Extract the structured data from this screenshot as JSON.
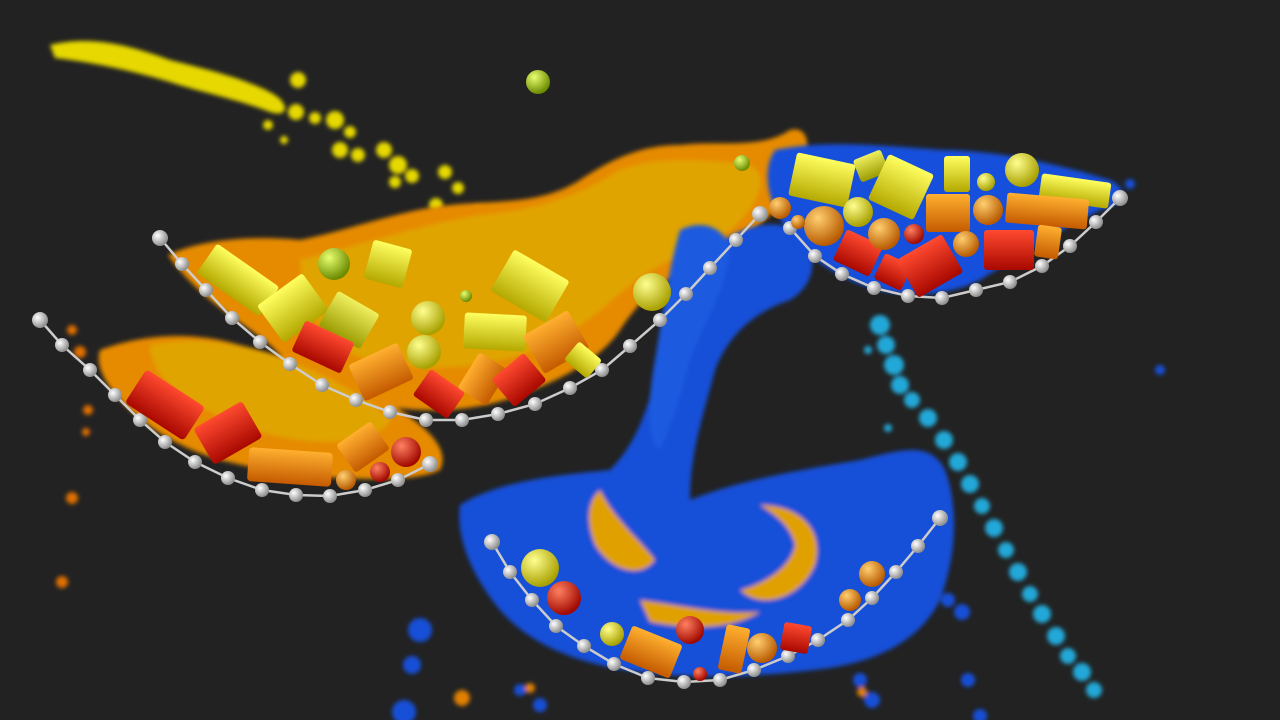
{
  "scene": {
    "background": "#222222",
    "palette": {
      "yellow": "#e8e800",
      "gold": "#f5b400",
      "orange": "#f08000",
      "red": "#e01010",
      "blue": "#1450dc",
      "cyan": "#20a8d8",
      "chain": "#d8d8d8"
    }
  }
}
